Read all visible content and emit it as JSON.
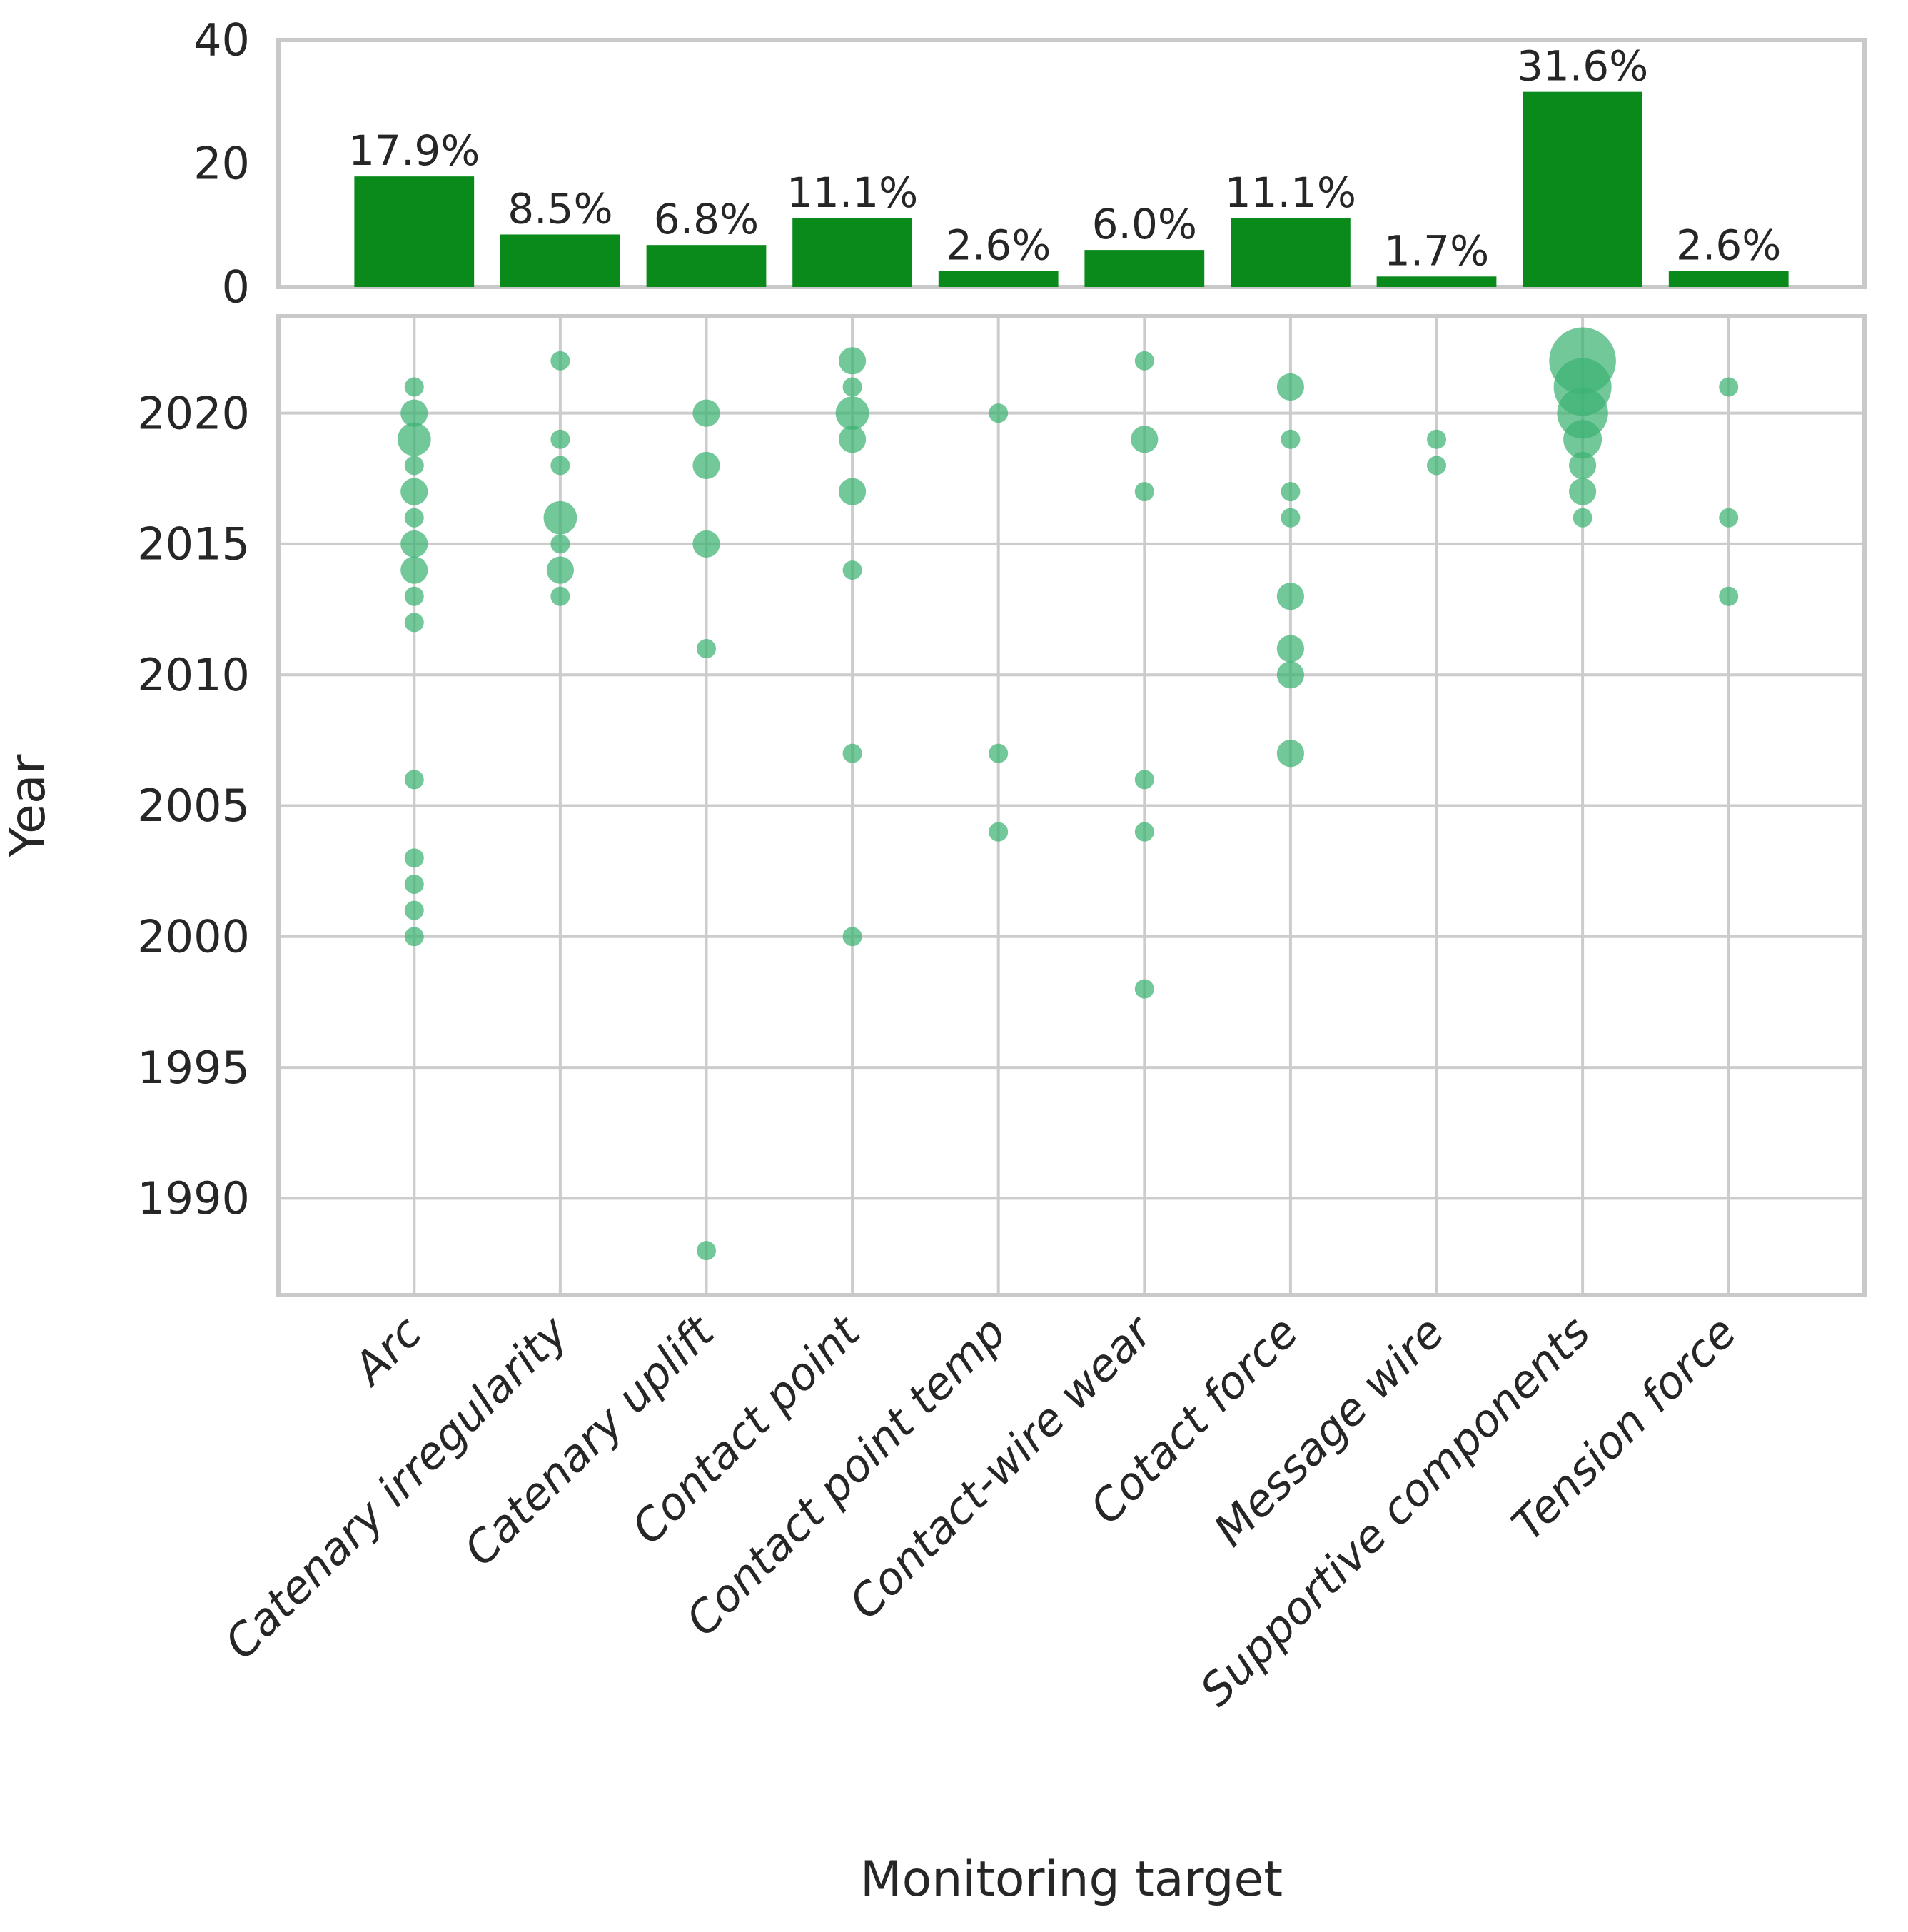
{
  "chart_data": [
    {
      "type": "bar",
      "panel": "top",
      "categories": [
        "Arc",
        "Catenary irregularity",
        "Catenary uplift",
        "Contact point",
        "Contact point temp",
        "Contact-wire wear",
        "Cotact force",
        "Message wire",
        "Supportive components",
        "Tension force"
      ],
      "values": [
        17.9,
        8.5,
        6.8,
        11.1,
        2.6,
        6.0,
        11.1,
        1.7,
        31.6,
        2.6
      ],
      "value_labels": [
        "17.9%",
        "8.5%",
        "6.8%",
        "11.1%",
        "2.6%",
        "6.0%",
        "11.1%",
        "1.7%",
        "31.6%",
        "2.6%"
      ],
      "ylim": [
        0,
        40
      ],
      "yticks": [
        0,
        20,
        40
      ],
      "bar_color": "#0a8a1a",
      "grid": false
    },
    {
      "type": "scatter",
      "panel": "bottom",
      "xlabel": "Monitoring target",
      "ylabel": "Year",
      "ylim": [
        1986.3,
        2023.7
      ],
      "yticks": [
        1990,
        1995,
        2000,
        2005,
        2010,
        2015,
        2020
      ],
      "grid": true,
      "bubble_color": "#3cb371",
      "bubble_opacity": 0.72,
      "legend": "none",
      "series": [
        {
          "category": "Arc",
          "points": [
            {
              "year": 2021,
              "count": 1
            },
            {
              "year": 2020,
              "count": 2
            },
            {
              "year": 2019,
              "count": 3
            },
            {
              "year": 2018,
              "count": 1
            },
            {
              "year": 2017,
              "count": 2
            },
            {
              "year": 2016,
              "count": 1
            },
            {
              "year": 2015,
              "count": 2
            },
            {
              "year": 2014,
              "count": 2
            },
            {
              "year": 2013,
              "count": 1
            },
            {
              "year": 2012,
              "count": 1
            },
            {
              "year": 2006,
              "count": 1
            },
            {
              "year": 2003,
              "count": 1
            },
            {
              "year": 2002,
              "count": 1
            },
            {
              "year": 2001,
              "count": 1
            },
            {
              "year": 2000,
              "count": 1
            }
          ]
        },
        {
          "category": "Catenary irregularity",
          "points": [
            {
              "year": 2022,
              "count": 1
            },
            {
              "year": 2019,
              "count": 1
            },
            {
              "year": 2018,
              "count": 1
            },
            {
              "year": 2016,
              "count": 3
            },
            {
              "year": 2015,
              "count": 1
            },
            {
              "year": 2014,
              "count": 2
            },
            {
              "year": 2013,
              "count": 1
            }
          ]
        },
        {
          "category": "Catenary uplift",
          "points": [
            {
              "year": 2020,
              "count": 2
            },
            {
              "year": 2018,
              "count": 2
            },
            {
              "year": 2015,
              "count": 2
            },
            {
              "year": 2011,
              "count": 1
            },
            {
              "year": 1988,
              "count": 1
            }
          ]
        },
        {
          "category": "Contact point",
          "points": [
            {
              "year": 2022,
              "count": 2
            },
            {
              "year": 2021,
              "count": 1
            },
            {
              "year": 2020,
              "count": 3
            },
            {
              "year": 2019,
              "count": 2
            },
            {
              "year": 2017,
              "count": 2
            },
            {
              "year": 2014,
              "count": 1
            },
            {
              "year": 2007,
              "count": 1
            },
            {
              "year": 2000,
              "count": 1
            }
          ]
        },
        {
          "category": "Contact point temp",
          "points": [
            {
              "year": 2020,
              "count": 1
            },
            {
              "year": 2007,
              "count": 1
            },
            {
              "year": 2004,
              "count": 1
            }
          ]
        },
        {
          "category": "Contact-wire wear",
          "points": [
            {
              "year": 2022,
              "count": 1
            },
            {
              "year": 2019,
              "count": 2
            },
            {
              "year": 2017,
              "count": 1
            },
            {
              "year": 2006,
              "count": 1
            },
            {
              "year": 2004,
              "count": 1
            },
            {
              "year": 1998,
              "count": 1
            }
          ]
        },
        {
          "category": "Cotact force",
          "points": [
            {
              "year": 2021,
              "count": 2
            },
            {
              "year": 2019,
              "count": 1
            },
            {
              "year": 2017,
              "count": 1
            },
            {
              "year": 2016,
              "count": 1
            },
            {
              "year": 2013,
              "count": 2
            },
            {
              "year": 2011,
              "count": 2
            },
            {
              "year": 2010,
              "count": 2
            },
            {
              "year": 2007,
              "count": 2
            }
          ]
        },
        {
          "category": "Message wire",
          "points": [
            {
              "year": 2019,
              "count": 1
            },
            {
              "year": 2018,
              "count": 1
            }
          ]
        },
        {
          "category": "Supportive components",
          "points": [
            {
              "year": 2022,
              "count": 12
            },
            {
              "year": 2021,
              "count": 9
            },
            {
              "year": 2020,
              "count": 7
            },
            {
              "year": 2019,
              "count": 4
            },
            {
              "year": 2018,
              "count": 2
            },
            {
              "year": 2017,
              "count": 2
            },
            {
              "year": 2016,
              "count": 1
            }
          ]
        },
        {
          "category": "Tension force",
          "points": [
            {
              "year": 2021,
              "count": 1
            },
            {
              "year": 2016,
              "count": 1
            },
            {
              "year": 2013,
              "count": 1
            }
          ]
        }
      ]
    }
  ]
}
